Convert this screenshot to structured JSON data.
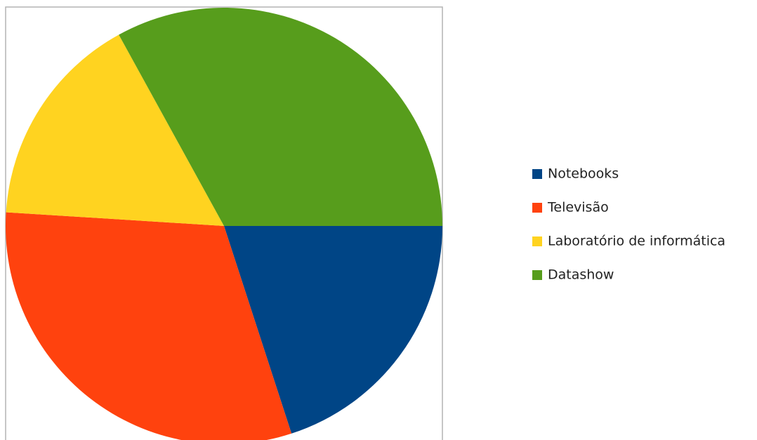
{
  "chart_data": {
    "type": "pie",
    "categories": [
      "Notebooks",
      "Televisão",
      "Laboratório de informática",
      "Datashow"
    ],
    "values": [
      20,
      31,
      16,
      33
    ],
    "colors": [
      "#004586",
      "#ff420e",
      "#ffd320",
      "#579d1c"
    ],
    "legend": "right"
  }
}
